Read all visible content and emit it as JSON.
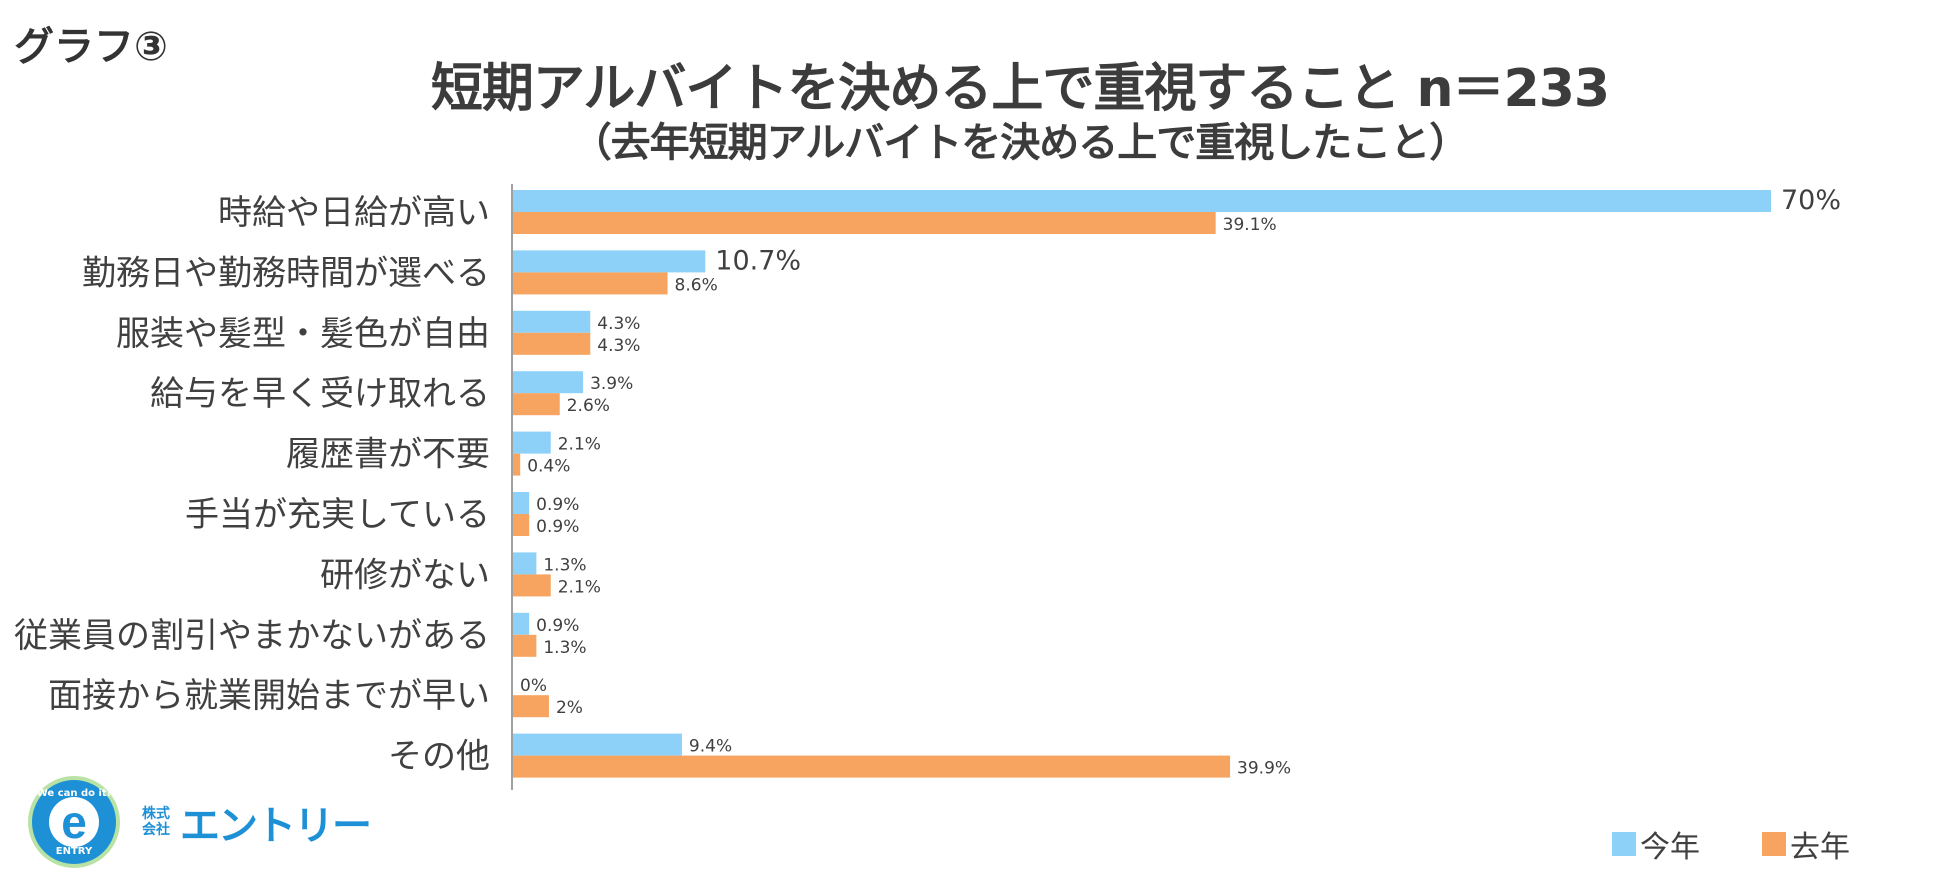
{
  "header": {
    "graph_label": "グラフ③",
    "title": "短期アルバイトを決める上で重視すること n＝233",
    "subtitle": "（去年短期アルバイトを決める上で重視したこと）"
  },
  "colors": {
    "this_year": "#8ed1f8",
    "last_year": "#f6a45f",
    "axis": "#808080"
  },
  "chart_data": {
    "type": "bar",
    "orientation": "horizontal",
    "title": "短期アルバイトを決める上で重視すること n＝233",
    "subtitle": "（去年短期アルバイトを決める上で重視したこと）",
    "categories": [
      "時給や日給が高い",
      "勤務日や勤務時間が選べる",
      "服装や髪型・髪色が自由",
      "給与を早く受け取れる",
      "履歴書が不要",
      "手当が充実している",
      "研修がない",
      "従業員の割引やまかないがある",
      "面接から就業開始までが早い",
      "その他"
    ],
    "series": [
      {
        "name": "今年",
        "values": [
          70,
          10.7,
          4.3,
          3.9,
          2.1,
          0.9,
          1.3,
          0.9,
          0,
          9.4
        ],
        "labels": [
          "70%",
          "10.7%",
          "4.3%",
          "3.9%",
          "2.1%",
          "0.9%",
          "1.3%",
          "0.9%",
          "0%",
          "9.4%"
        ]
      },
      {
        "name": "去年",
        "values": [
          39.1,
          8.6,
          4.3,
          2.6,
          0.4,
          0.9,
          2.1,
          1.3,
          2,
          39.9
        ],
        "labels": [
          "39.1%",
          "8.6%",
          "4.3%",
          "2.6%",
          "0.4%",
          "0.9%",
          "2.1%",
          "1.3%",
          "2%",
          "39.9%"
        ]
      }
    ],
    "xlim": [
      0,
      75
    ],
    "legend": "bottom-right"
  },
  "legend": {
    "this_year": "今年",
    "last_year": "去年"
  },
  "logo": {
    "top_text": "We can do it!",
    "letter": "e",
    "bottom_text": "ENTRY",
    "company_prefix": "株式会社",
    "company_name": "エントリー"
  }
}
